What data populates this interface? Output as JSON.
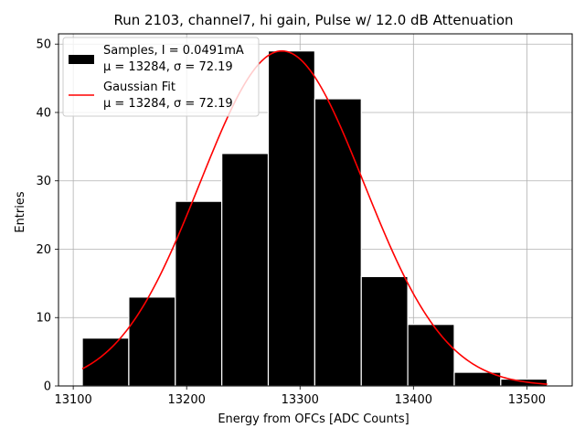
{
  "chart_data": {
    "type": "bar",
    "title": "Run 2103, channel7, hi gain, Pulse w/ 12.0 dB Attenuation",
    "xlabel": "Energy from OFCs [ADC Counts]",
    "ylabel": "Entries",
    "xlim": [
      13087,
      13540
    ],
    "ylim": [
      0,
      51.5
    ],
    "xticks": [
      13100,
      13200,
      13300,
      13400,
      13500
    ],
    "yticks": [
      0,
      10,
      20,
      30,
      40,
      50
    ],
    "grid": true,
    "legend_position": "top-left",
    "bins": [
      {
        "left": 13108,
        "right": 13149,
        "count": 7
      },
      {
        "left": 13149,
        "right": 13190,
        "count": 13
      },
      {
        "left": 13190,
        "right": 13231,
        "count": 27
      },
      {
        "left": 13231,
        "right": 13272,
        "count": 34
      },
      {
        "left": 13272,
        "right": 13313,
        "count": 49
      },
      {
        "left": 13313,
        "right": 13354,
        "count": 42
      },
      {
        "left": 13354,
        "right": 13395,
        "count": 16
      },
      {
        "left": 13395,
        "right": 13436,
        "count": 9
      },
      {
        "left": 13436,
        "right": 13477,
        "count": 2
      },
      {
        "left": 13477,
        "right": 13518,
        "count": 1
      }
    ],
    "series": [
      {
        "name": "Samples, I = 0.0491mA",
        "name_line2": "μ = 13284, σ = 72.19",
        "kind": "histogram",
        "color": "#000000"
      },
      {
        "name": "Gaussian Fit",
        "name_line2": "μ = 13284, σ = 72.19",
        "kind": "line",
        "color": "#ff0000",
        "mu": 13284,
        "sigma": 72.19,
        "amplitude": 49,
        "x_range": [
          13108,
          13518
        ]
      }
    ]
  }
}
